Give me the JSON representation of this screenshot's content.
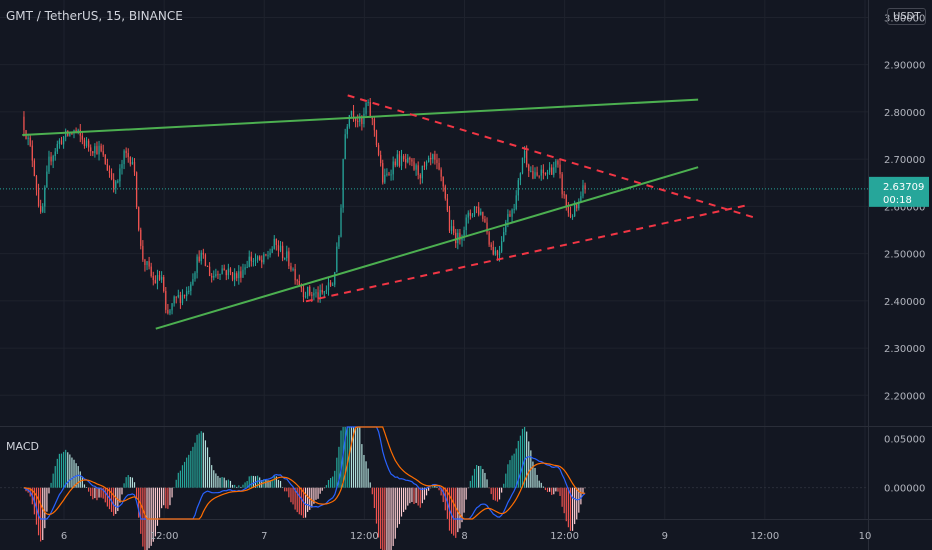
{
  "header": {
    "symbol_title": "GMT / TetherUS, 15, BINANCE",
    "currency": "USDT"
  },
  "indicator": {
    "label": "MACD"
  },
  "colors": {
    "up": "#26a69a",
    "down": "#ef5350",
    "trendline": "#4caf50",
    "dashed": "#f23645",
    "macd_line": "#2962ff",
    "signal_line": "#ff6d00",
    "last_price": "#26a69a"
  },
  "last_price": {
    "value": "2.63709",
    "countdown": "00:18"
  },
  "chart_data": [
    {
      "type": "candlestick",
      "title": "GMT / TetherUS, 15, BINANCE",
      "x_ticks": [
        "6",
        "12:00",
        "7",
        "12:00",
        "8",
        "12:00",
        "9",
        "12:00",
        "10"
      ],
      "x_tick_hours": [
        24,
        36,
        48,
        60,
        72,
        84,
        96,
        108,
        120
      ],
      "y_ticks": [
        "2.20000",
        "2.30000",
        "2.40000",
        "2.50000",
        "2.60000",
        "2.70000",
        "2.80000",
        "2.90000",
        "3.00000"
      ],
      "ylim": [
        2.135,
        3.02
      ],
      "price_path": [
        [
          19.2,
          2.79
        ],
        [
          20.5,
          2.7
        ],
        [
          21.5,
          2.57
        ],
        [
          22.5,
          2.7
        ],
        [
          23.8,
          2.74
        ],
        [
          25.5,
          2.76
        ],
        [
          27.0,
          2.73
        ],
        [
          28.5,
          2.72
        ],
        [
          30.5,
          2.64
        ],
        [
          31.5,
          2.71
        ],
        [
          32.5,
          2.7
        ],
        [
          33.0,
          2.6
        ],
        [
          33.5,
          2.5
        ],
        [
          35.0,
          2.44
        ],
        [
          36.0,
          2.45
        ],
        [
          36.5,
          2.36
        ],
        [
          37.5,
          2.4
        ],
        [
          39.0,
          2.42
        ],
        [
          40.5,
          2.5
        ],
        [
          42.0,
          2.45
        ],
        [
          43.0,
          2.47
        ],
        [
          45.0,
          2.45
        ],
        [
          46.5,
          2.49
        ],
        [
          48.0,
          2.48
        ],
        [
          49.5,
          2.52
        ],
        [
          51.0,
          2.49
        ],
        [
          53.0,
          2.42
        ],
        [
          55.0,
          2.41
        ],
        [
          56.5,
          2.44
        ],
        [
          57.3,
          2.55
        ],
        [
          57.8,
          2.74
        ],
        [
          58.5,
          2.81
        ],
        [
          60.0,
          2.77
        ],
        [
          60.5,
          2.82
        ],
        [
          61.5,
          2.76
        ],
        [
          62.5,
          2.65
        ],
        [
          64.0,
          2.7
        ],
        [
          65.5,
          2.69
        ],
        [
          67.0,
          2.67
        ],
        [
          68.5,
          2.7
        ],
        [
          69.8,
          2.64
        ],
        [
          70.5,
          2.55
        ],
        [
          71.5,
          2.53
        ],
        [
          72.5,
          2.57
        ],
        [
          73.5,
          2.6
        ],
        [
          74.5,
          2.58
        ],
        [
          75.5,
          2.51
        ],
        [
          76.3,
          2.5
        ],
        [
          77.0,
          2.56
        ],
        [
          78.5,
          2.62
        ],
        [
          79.3,
          2.72
        ],
        [
          80.5,
          2.66
        ],
        [
          82.0,
          2.67
        ],
        [
          83.3,
          2.69
        ],
        [
          84.0,
          2.63
        ],
        [
          84.8,
          2.58
        ],
        [
          86.0,
          2.6
        ],
        [
          86.5,
          2.637
        ]
      ],
      "trendlines": [
        {
          "style": "solid",
          "points": [
            [
              19.0,
              2.751
            ],
            [
              100.0,
              2.826
            ]
          ]
        },
        {
          "style": "solid",
          "points": [
            [
              35.0,
              2.341
            ],
            [
              100.0,
              2.683
            ]
          ]
        },
        {
          "style": "dashed",
          "points": [
            [
              58.0,
              2.835
            ],
            [
              107.0,
              2.575
            ]
          ]
        },
        {
          "style": "dashed",
          "points": [
            [
              53.0,
              2.399
            ],
            [
              106.0,
              2.603
            ]
          ]
        }
      ]
    },
    {
      "type": "histogram",
      "name": "MACD",
      "y_ticks": [
        "0.00000",
        "0.05000"
      ],
      "ylim": [
        -0.032,
        0.062
      ]
    }
  ]
}
